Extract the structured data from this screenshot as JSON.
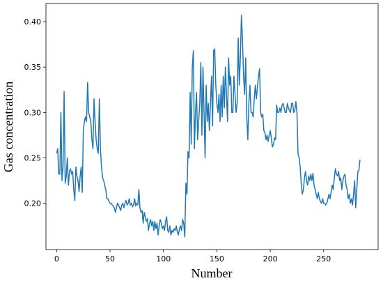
{
  "chart_data": {
    "type": "line",
    "xlabel": "Number",
    "ylabel": "Gas concentration",
    "x": [
      0,
      1,
      2,
      3,
      4,
      5,
      6,
      7,
      8,
      9,
      10,
      11,
      12,
      13,
      14,
      15,
      16,
      17,
      18,
      19,
      20,
      21,
      22,
      23,
      24,
      25,
      26,
      27,
      28,
      29,
      30,
      31,
      32,
      33,
      34,
      35,
      36,
      37,
      38,
      39,
      40,
      41,
      42,
      43,
      44,
      45,
      46,
      47,
      48,
      49,
      50,
      51,
      52,
      53,
      54,
      55,
      56,
      57,
      58,
      59,
      60,
      61,
      62,
      63,
      64,
      65,
      66,
      67,
      68,
      69,
      70,
      71,
      72,
      73,
      74,
      75,
      76,
      77,
      78,
      79,
      80,
      81,
      82,
      83,
      84,
      85,
      86,
      87,
      88,
      89,
      90,
      91,
      92,
      93,
      94,
      95,
      96,
      97,
      98,
      99,
      100,
      101,
      102,
      103,
      104,
      105,
      106,
      107,
      108,
      109,
      110,
      111,
      112,
      113,
      114,
      115,
      116,
      117,
      118,
      119,
      120,
      121,
      122,
      123,
      124,
      125,
      126,
      127,
      128,
      129,
      130,
      131,
      132,
      133,
      134,
      135,
      136,
      137,
      138,
      139,
      140,
      141,
      142,
      143,
      144,
      145,
      146,
      147,
      148,
      149,
      150,
      151,
      152,
      153,
      154,
      155,
      156,
      157,
      158,
      159,
      160,
      161,
      162,
      163,
      164,
      165,
      166,
      167,
      168,
      169,
      170,
      171,
      172,
      173,
      174,
      175,
      176,
      177,
      178,
      179,
      180,
      181,
      182,
      183,
      184,
      185,
      186,
      187,
      188,
      189,
      190,
      191,
      192,
      193,
      194,
      195,
      196,
      197,
      198,
      199,
      200,
      201,
      202,
      203,
      204,
      205,
      206,
      207,
      208,
      209,
      210,
      211,
      212,
      213,
      214,
      215,
      216,
      217,
      218,
      219,
      220,
      221,
      222,
      223,
      224,
      225,
      226,
      227,
      228,
      229,
      230,
      231,
      232,
      233,
      234,
      235,
      236,
      237,
      238,
      239,
      240,
      241,
      242,
      243,
      244,
      245,
      246,
      247,
      248,
      249,
      250,
      251,
      252,
      253,
      254,
      255,
      256,
      257,
      258,
      259,
      260,
      261,
      262,
      263,
      264,
      265,
      266,
      267,
      268,
      269,
      270,
      271,
      272,
      273,
      274,
      275,
      276,
      277,
      278,
      279,
      280,
      281,
      282,
      283,
      284
    ],
    "values": [
      0.255,
      0.26,
      0.232,
      0.232,
      0.3,
      0.225,
      0.24,
      0.323,
      0.222,
      0.23,
      0.25,
      0.22,
      0.235,
      0.238,
      0.232,
      0.235,
      0.215,
      0.203,
      0.24,
      0.23,
      0.225,
      0.213,
      0.23,
      0.24,
      0.212,
      0.28,
      0.29,
      0.295,
      0.29,
      0.333,
      0.3,
      0.295,
      0.29,
      0.27,
      0.26,
      0.315,
      0.29,
      0.27,
      0.26,
      0.255,
      0.315,
      0.26,
      0.24,
      0.228,
      0.225,
      0.22,
      0.215,
      0.205,
      0.205,
      0.202,
      0.2,
      0.2,
      0.198,
      0.197,
      0.195,
      0.19,
      0.195,
      0.2,
      0.198,
      0.195,
      0.192,
      0.198,
      0.2,
      0.195,
      0.2,
      0.203,
      0.198,
      0.2,
      0.205,
      0.198,
      0.2,
      0.196,
      0.198,
      0.205,
      0.197,
      0.2,
      0.198,
      0.215,
      0.195,
      0.19,
      0.192,
      0.178,
      0.19,
      0.185,
      0.18,
      0.183,
      0.17,
      0.178,
      0.182,
      0.175,
      0.18,
      0.17,
      0.18,
      0.172,
      0.178,
      0.165,
      0.175,
      0.182,
      0.178,
      0.172,
      0.175,
      0.17,
      0.18,
      0.185,
      0.17,
      0.168,
      0.175,
      0.165,
      0.17,
      0.168,
      0.172,
      0.17,
      0.175,
      0.168,
      0.165,
      0.172,
      0.175,
      0.17,
      0.182,
      0.178,
      0.163,
      0.222,
      0.21,
      0.257,
      0.25,
      0.322,
      0.265,
      0.35,
      0.368,
      0.26,
      0.3,
      0.322,
      0.27,
      0.29,
      0.31,
      0.355,
      0.275,
      0.35,
      0.3,
      0.25,
      0.33,
      0.29,
      0.31,
      0.28,
      0.31,
      0.34,
      0.285,
      0.368,
      0.37,
      0.33,
      0.31,
      0.3,
      0.32,
      0.29,
      0.33,
      0.295,
      0.34,
      0.305,
      0.35,
      0.32,
      0.29,
      0.36,
      0.33,
      0.34,
      0.3,
      0.3,
      0.34,
      0.32,
      0.3,
      0.31,
      0.382,
      0.33,
      0.36,
      0.407,
      0.38,
      0.34,
      0.32,
      0.36,
      0.295,
      0.27,
      0.31,
      0.33,
      0.3,
      0.3,
      0.295,
      0.315,
      0.33,
      0.315,
      0.328,
      0.34,
      0.348,
      0.3,
      0.295,
      0.298,
      0.28,
      0.278,
      0.27,
      0.275,
      0.268,
      0.275,
      0.28,
      0.272,
      0.262,
      0.265,
      0.272,
      0.27,
      0.308,
      0.3,
      0.3,
      0.305,
      0.3,
      0.308,
      0.31,
      0.305,
      0.3,
      0.3,
      0.31,
      0.305,
      0.302,
      0.3,
      0.31,
      0.31,
      0.3,
      0.302,
      0.312,
      0.3,
      0.255,
      0.25,
      0.24,
      0.222,
      0.21,
      0.215,
      0.228,
      0.235,
      0.225,
      0.22,
      0.23,
      0.225,
      0.232,
      0.225,
      0.233,
      0.22,
      0.215,
      0.21,
      0.205,
      0.212,
      0.205,
      0.202,
      0.2,
      0.205,
      0.2,
      0.2,
      0.198,
      0.2,
      0.205,
      0.21,
      0.205,
      0.212,
      0.22,
      0.215,
      0.228,
      0.238,
      0.232,
      0.23,
      0.235,
      0.225,
      0.228,
      0.215,
      0.225,
      0.23,
      0.232,
      0.22,
      0.215,
      0.205,
      0.21,
      0.2,
      0.205,
      0.198,
      0.21,
      0.225,
      0.195,
      0.215,
      0.235,
      0.236,
      0.248
    ],
    "color": "#1f77b4",
    "xlim": [
      -10,
      301
    ],
    "ylim": [
      0.149,
      0.42
    ],
    "xticks": [
      0,
      50,
      100,
      150,
      200,
      250
    ],
    "yticks": [
      {
        "value": 0.2,
        "label": "0.20"
      },
      0.25,
      {
        "value": 0.3,
        "label": "0.30"
      },
      0.35,
      {
        "value": 0.4,
        "label": "0.40"
      }
    ]
  }
}
